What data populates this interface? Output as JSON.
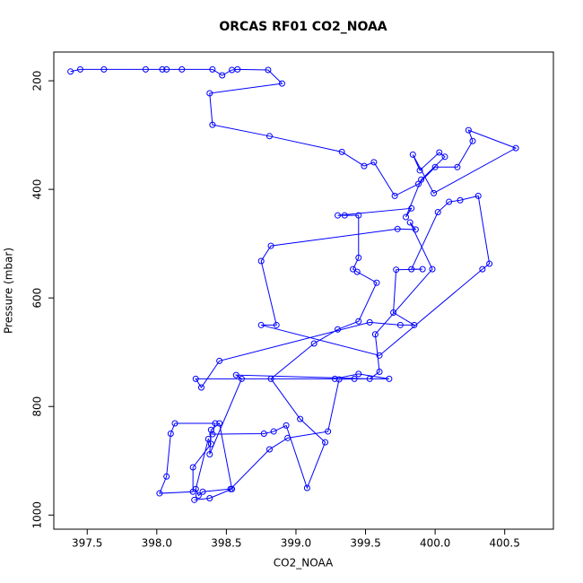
{
  "chart_data": {
    "type": "line",
    "markers": true,
    "title": "ORCAS RF01 CO2_NOAA",
    "xlabel": "CO2_NOAA",
    "ylabel": "Pressure (mbar)",
    "color": "#0000ff",
    "x": [
      397.38,
      397.45,
      397.62,
      397.92,
      398.04,
      398.07,
      398.18,
      398.4,
      398.47,
      398.54,
      398.58,
      398.8,
      398.9,
      398.38,
      398.4,
      398.81,
      399.33,
      399.49,
      399.56,
      399.71,
      399.88,
      400.0,
      400.16,
      400.27,
      400.24,
      400.58,
      399.99,
      399.84,
      399.89,
      400.03,
      400.07,
      399.9,
      399.79,
      399.83,
      399.3,
      399.35,
      399.45,
      399.45,
      399.41,
      399.44,
      399.58,
      399.45,
      399.3,
      399.13,
      398.82,
      399.03,
      399.21,
      399.08,
      398.93,
      398.84,
      398.77,
      398.4,
      398.42,
      398.13,
      398.1,
      398.07,
      398.02,
      398.26,
      398.26,
      398.39,
      398.37,
      398.28,
      398.3,
      398.33,
      398.53,
      398.81,
      398.94,
      399.23,
      399.31,
      399.42,
      399.67,
      399.45,
      399.28,
      398.28,
      398.32,
      398.45,
      399.53,
      399.75,
      399.85,
      399.7,
      399.72,
      399.91,
      399.83,
      400.02,
      400.1,
      400.18,
      400.31,
      400.39,
      400.34,
      399.6,
      398.75,
      398.86,
      398.75,
      398.82,
      399.73,
      399.86,
      399.82,
      399.98,
      399.57,
      399.6,
      399.53,
      398.57,
      398.61,
      398.38,
      398.39,
      398.45,
      398.54,
      398.38,
      398.27
    ],
    "y": [
      183,
      179,
      179,
      179,
      179,
      179,
      179,
      179,
      190,
      180,
      179,
      180,
      205,
      223,
      281,
      302,
      331,
      357,
      350,
      412,
      390,
      359,
      359,
      311,
      291,
      324,
      407,
      336,
      365,
      332,
      340,
      382,
      451,
      435,
      448,
      448,
      448,
      526,
      547,
      552,
      572,
      643,
      658,
      684,
      749,
      823,
      866,
      950,
      835,
      846,
      850,
      851,
      831,
      831,
      850,
      929,
      960,
      957,
      912,
      869,
      860,
      952,
      964,
      957,
      952,
      879,
      858,
      846,
      750,
      749,
      749,
      740,
      749,
      749,
      765,
      716,
      645,
      650,
      650,
      627,
      548,
      547,
      547,
      442,
      423,
      420,
      412,
      537,
      547,
      706,
      650,
      650,
      532,
      504,
      473,
      474,
      461,
      547,
      667,
      736,
      749,
      742,
      749,
      888,
      843,
      831,
      952,
      969,
      972
    ],
    "xlim": [
      397.26,
      400.85
    ],
    "ylim": [
      1026,
      147
    ],
    "xticks": [
      397.5,
      {
        "value": 398,
        "label": "398.0"
      },
      398.5,
      {
        "value": 399,
        "label": "399.0"
      },
      399.5,
      {
        "value": 400,
        "label": "400.0"
      },
      400.5
    ],
    "yticks": [
      200,
      400,
      600,
      800,
      1000
    ]
  }
}
